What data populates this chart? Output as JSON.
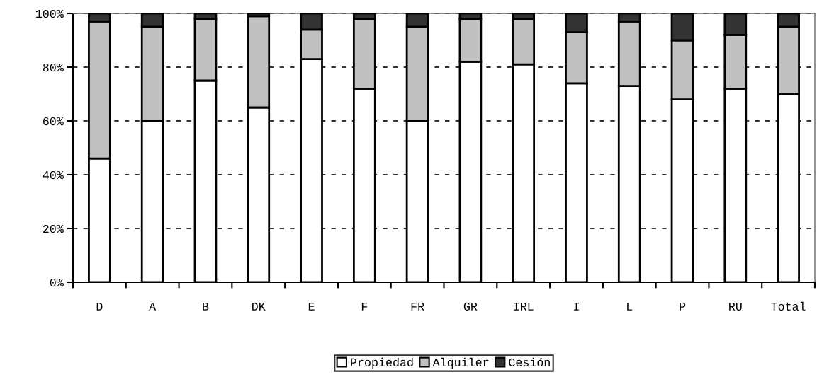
{
  "chart_data": {
    "type": "bar",
    "stacked": true,
    "categories": [
      "D",
      "A",
      "B",
      "DK",
      "E",
      "F",
      "FR",
      "GR",
      "IRL",
      "I",
      "L",
      "P",
      "RU",
      "Total"
    ],
    "series": [
      {
        "name": "Propiedad",
        "color": "#ffffff",
        "values": [
          46,
          60,
          75,
          65,
          83,
          72,
          60,
          82,
          81,
          74,
          73,
          68,
          72,
          70
        ]
      },
      {
        "name": "Alquiler",
        "color": "#c0c0c0",
        "values": [
          51,
          35,
          23,
          34,
          11,
          26,
          35,
          16,
          17,
          19,
          24,
          22,
          20,
          25
        ]
      },
      {
        "name": "Cesión",
        "color": "#333333",
        "values": [
          3,
          5,
          2,
          1,
          6,
          2,
          5,
          2,
          2,
          7,
          3,
          10,
          8,
          5
        ]
      }
    ],
    "ylim": [
      0,
      100
    ],
    "yticks": [
      {
        "value": 0,
        "label": "0%"
      },
      {
        "value": 20,
        "label": "20%"
      },
      {
        "value": 40,
        "label": "40%"
      },
      {
        "value": 60,
        "label": "60%"
      },
      {
        "value": 80,
        "label": "80%"
      },
      {
        "value": 100,
        "label": "100%"
      }
    ],
    "grid": "y",
    "legend": "bottom"
  }
}
